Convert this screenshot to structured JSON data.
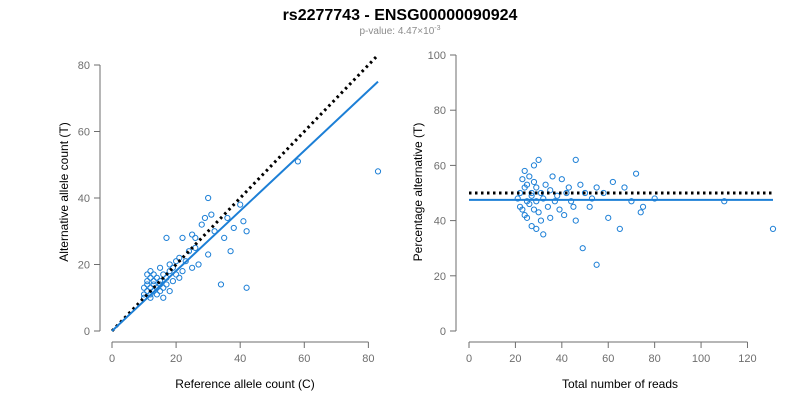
{
  "figure": {
    "title": "rs2277743 - ENSG00000090924",
    "pvalue_prefix": "p-value: 4.47×10",
    "pvalue_exponent": "-3"
  },
  "colors": {
    "points": "#1c7fd6",
    "fit_line": "#1c7fd6",
    "reference_line": "#000000"
  },
  "chart_data": [
    {
      "type": "scatter",
      "title": "",
      "xlabel": "Reference allele count (C)",
      "ylabel": "Alternative allele count (T)",
      "xlim": [
        0,
        83
      ],
      "ylim": [
        0,
        80
      ],
      "xticks": [
        0,
        20,
        40,
        60,
        80
      ],
      "yticks": [
        0,
        20,
        40,
        60,
        80
      ],
      "grid": false,
      "reference_line": {
        "style": "dotted",
        "color": "#000000",
        "from": [
          0,
          0
        ],
        "to": [
          83,
          83
        ]
      },
      "fit_line": {
        "style": "solid",
        "color": "#1c7fd6",
        "from": [
          0,
          0
        ],
        "to": [
          83,
          75
        ]
      },
      "x": [
        10,
        10,
        10,
        11,
        11,
        11,
        11,
        12,
        12,
        12,
        12,
        12,
        13,
        13,
        13,
        13,
        14,
        14,
        14,
        15,
        15,
        15,
        15,
        16,
        16,
        16,
        17,
        17,
        17,
        18,
        18,
        18,
        19,
        19,
        20,
        20,
        21,
        21,
        22,
        22,
        23,
        24,
        25,
        25,
        26,
        26,
        27,
        28,
        29,
        30,
        30,
        31,
        32,
        34,
        35,
        36,
        37,
        38,
        40,
        41,
        42,
        42,
        58,
        83
      ],
      "y": [
        10,
        11,
        13,
        12,
        14,
        15,
        17,
        11,
        13,
        16,
        18,
        10,
        12,
        14,
        15,
        17,
        11,
        13,
        16,
        12,
        14,
        15,
        19,
        10,
        13,
        17,
        14,
        16,
        28,
        18,
        20,
        12,
        15,
        19,
        21,
        17,
        16,
        22,
        18,
        28,
        21,
        24,
        19,
        29,
        25,
        28,
        20,
        32,
        34,
        40,
        23,
        35,
        30,
        14,
        28,
        34,
        24,
        31,
        38,
        33,
        30,
        13,
        51,
        48
      ]
    },
    {
      "type": "scatter",
      "title": "",
      "xlabel": "Total number of reads",
      "ylabel": "Percentage alternative (T)",
      "xlim": [
        0,
        131
      ],
      "ylim": [
        0,
        100
      ],
      "xticks": [
        0,
        20,
        40,
        60,
        80,
        100,
        120
      ],
      "yticks": [
        0,
        20,
        40,
        60,
        80,
        100
      ],
      "grid": false,
      "reference_line": {
        "style": "dotted",
        "color": "#000000",
        "y": 50
      },
      "fit_line": {
        "style": "solid",
        "color": "#1c7fd6",
        "y": 47.5
      },
      "x": [
        21,
        22,
        22,
        23,
        23,
        24,
        24,
        24,
        25,
        25,
        25,
        26,
        26,
        27,
        27,
        27,
        28,
        28,
        28,
        29,
        29,
        29,
        30,
        30,
        31,
        31,
        32,
        32,
        33,
        34,
        35,
        35,
        36,
        37,
        38,
        39,
        40,
        41,
        42,
        43,
        44,
        45,
        46,
        46,
        48,
        49,
        50,
        52,
        53,
        55,
        55,
        58,
        60,
        62,
        65,
        67,
        70,
        72,
        74,
        75,
        80,
        110,
        131
      ],
      "y": [
        48,
        50,
        45,
        55,
        44,
        52,
        58,
        42,
        47,
        53,
        41,
        56,
        46,
        50,
        38,
        49,
        54,
        44,
        60,
        37,
        52,
        47,
        43,
        62,
        50,
        40,
        48,
        35,
        53,
        45,
        51,
        41,
        56,
        47,
        49,
        44,
        55,
        42,
        50,
        52,
        47,
        45,
        62,
        40,
        53,
        30,
        50,
        45,
        48,
        52,
        24,
        50,
        41,
        54,
        37,
        52,
        47,
        57,
        43,
        45,
        48,
        47,
        37
      ]
    }
  ]
}
